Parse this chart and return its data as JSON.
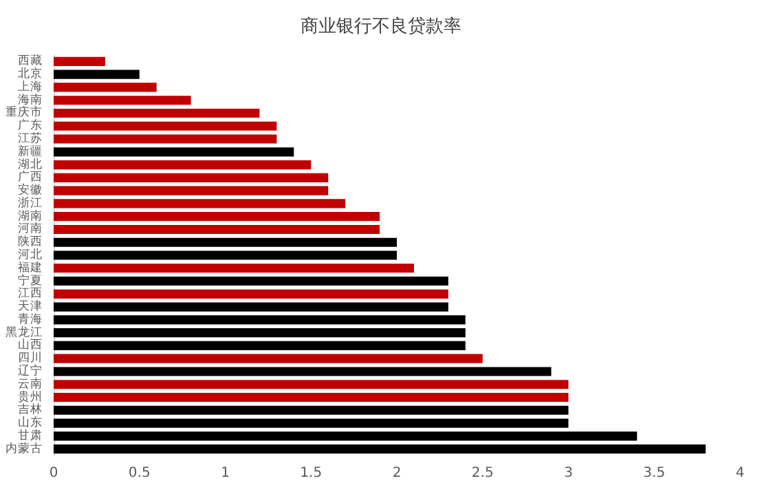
{
  "chart_data": {
    "type": "bar",
    "orientation": "horizontal",
    "title": "商业银行不良贷款率",
    "categories": [
      "西藏",
      "北京",
      "上海",
      "海南",
      "重庆市",
      "广东",
      "江苏",
      "新疆",
      "湖北",
      "广西",
      "安徽",
      "浙江",
      "湖南",
      "河南",
      "陕西",
      "河北",
      "福建",
      "宁夏",
      "江西",
      "天津",
      "青海",
      "黑龙江",
      "山西",
      "四川",
      "辽宁",
      "云南",
      "贵州",
      "吉林",
      "山东",
      "甘肃",
      "内蒙古"
    ],
    "values": [
      0.3,
      0.5,
      0.6,
      0.8,
      1.2,
      1.3,
      1.3,
      1.4,
      1.5,
      1.6,
      1.6,
      1.7,
      1.9,
      1.9,
      2.0,
      2.0,
      2.1,
      2.3,
      2.3,
      2.3,
      2.4,
      2.4,
      2.4,
      2.5,
      2.9,
      3.0,
      3.0,
      3.0,
      3.0,
      3.4,
      3.8
    ],
    "colors": [
      "#c00000",
      "#000000",
      "#c00000",
      "#c00000",
      "#c00000",
      "#c00000",
      "#c00000",
      "#000000",
      "#c00000",
      "#c00000",
      "#c00000",
      "#c00000",
      "#c00000",
      "#c00000",
      "#000000",
      "#000000",
      "#c00000",
      "#000000",
      "#c00000",
      "#000000",
      "#000000",
      "#000000",
      "#000000",
      "#c00000",
      "#000000",
      "#c00000",
      "#c00000",
      "#000000",
      "#000000",
      "#000000",
      "#000000"
    ],
    "xlim": [
      0,
      4
    ],
    "xticks": [
      0,
      0.5,
      1,
      1.5,
      2,
      2.5,
      3,
      3.5,
      4
    ],
    "grid": false
  }
}
